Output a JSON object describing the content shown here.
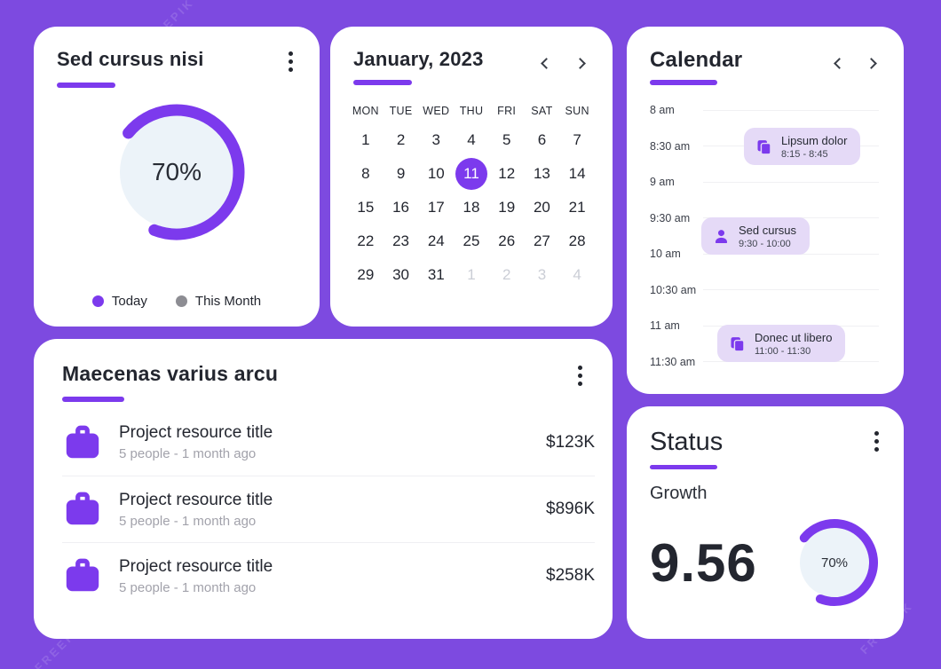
{
  "theme": {
    "bg": "#7D4AE0",
    "accent": "#7C3AED",
    "card": "#FFFFFF",
    "ink": "#23262F",
    "gray": "#A2A2AB",
    "pill": "#E5DAF7",
    "donut_inner": "#ECF3F9",
    "gridline": "#F0F0F3",
    "muted_day": "#CBCED6",
    "separator": "#EFEFF3"
  },
  "watermark": "FREEPIK",
  "donut_card": {
    "title": "Sed cursus nisi",
    "percent_label": "70%",
    "percent_value": 70,
    "legend": [
      {
        "label": "Today",
        "color": "#7C3AED"
      },
      {
        "label": "This Month",
        "color": "#8D8D93"
      }
    ]
  },
  "month_card": {
    "title": "January, 2023",
    "weekdays": [
      "MON",
      "TUE",
      "WED",
      "THU",
      "FRI",
      "SAT",
      "SUN"
    ],
    "selected_day": "11",
    "weeks": [
      [
        {
          "t": "1"
        },
        {
          "t": "2"
        },
        {
          "t": "3"
        },
        {
          "t": "4"
        },
        {
          "t": "5"
        },
        {
          "t": "6"
        },
        {
          "t": "7"
        }
      ],
      [
        {
          "t": "8"
        },
        {
          "t": "9"
        },
        {
          "t": "10"
        },
        {
          "t": "11",
          "selected": true
        },
        {
          "t": "12"
        },
        {
          "t": "13"
        },
        {
          "t": "14"
        }
      ],
      [
        {
          "t": "15"
        },
        {
          "t": "16"
        },
        {
          "t": "17"
        },
        {
          "t": "18"
        },
        {
          "t": "19"
        },
        {
          "t": "20"
        },
        {
          "t": "21"
        }
      ],
      [
        {
          "t": "22"
        },
        {
          "t": "23"
        },
        {
          "t": "24"
        },
        {
          "t": "25"
        },
        {
          "t": "26"
        },
        {
          "t": "27"
        },
        {
          "t": "28"
        }
      ],
      [
        {
          "t": "29"
        },
        {
          "t": "30"
        },
        {
          "t": "31"
        },
        {
          "t": "1",
          "muted": true
        },
        {
          "t": "2",
          "muted": true
        },
        {
          "t": "3",
          "muted": true
        },
        {
          "t": "4",
          "muted": true
        }
      ]
    ]
  },
  "schedule_card": {
    "title": "Calendar",
    "times": [
      "8 am",
      "8:30 am",
      "9 am",
      "9:30 am",
      "10 am",
      "10:30 am",
      "11 am",
      "11:30 am"
    ],
    "events": [
      {
        "title": "Lipsum dolor",
        "time": "8:15 - 8:45",
        "icon": "copy-icon"
      },
      {
        "title": "Sed cursus",
        "time": "9:30 - 10:00",
        "icon": "person-icon"
      },
      {
        "title": "Donec ut libero",
        "time": "11:00 - 11:30",
        "icon": "copy-icon"
      }
    ]
  },
  "projects_card": {
    "title": "Maecenas varius arcu",
    "rows": [
      {
        "title": "Project resource title",
        "subtitle": "5 people - 1 month ago",
        "value": "$123K"
      },
      {
        "title": "Project resource title",
        "subtitle": "5 people - 1 month ago",
        "value": "$896K"
      },
      {
        "title": "Project resource title",
        "subtitle": "5 people - 1 month ago",
        "value": "$258K"
      }
    ]
  },
  "status_card": {
    "title": "Status",
    "subtitle": "Growth",
    "value": "9.56",
    "percent_label": "70%",
    "percent_value": 70
  }
}
